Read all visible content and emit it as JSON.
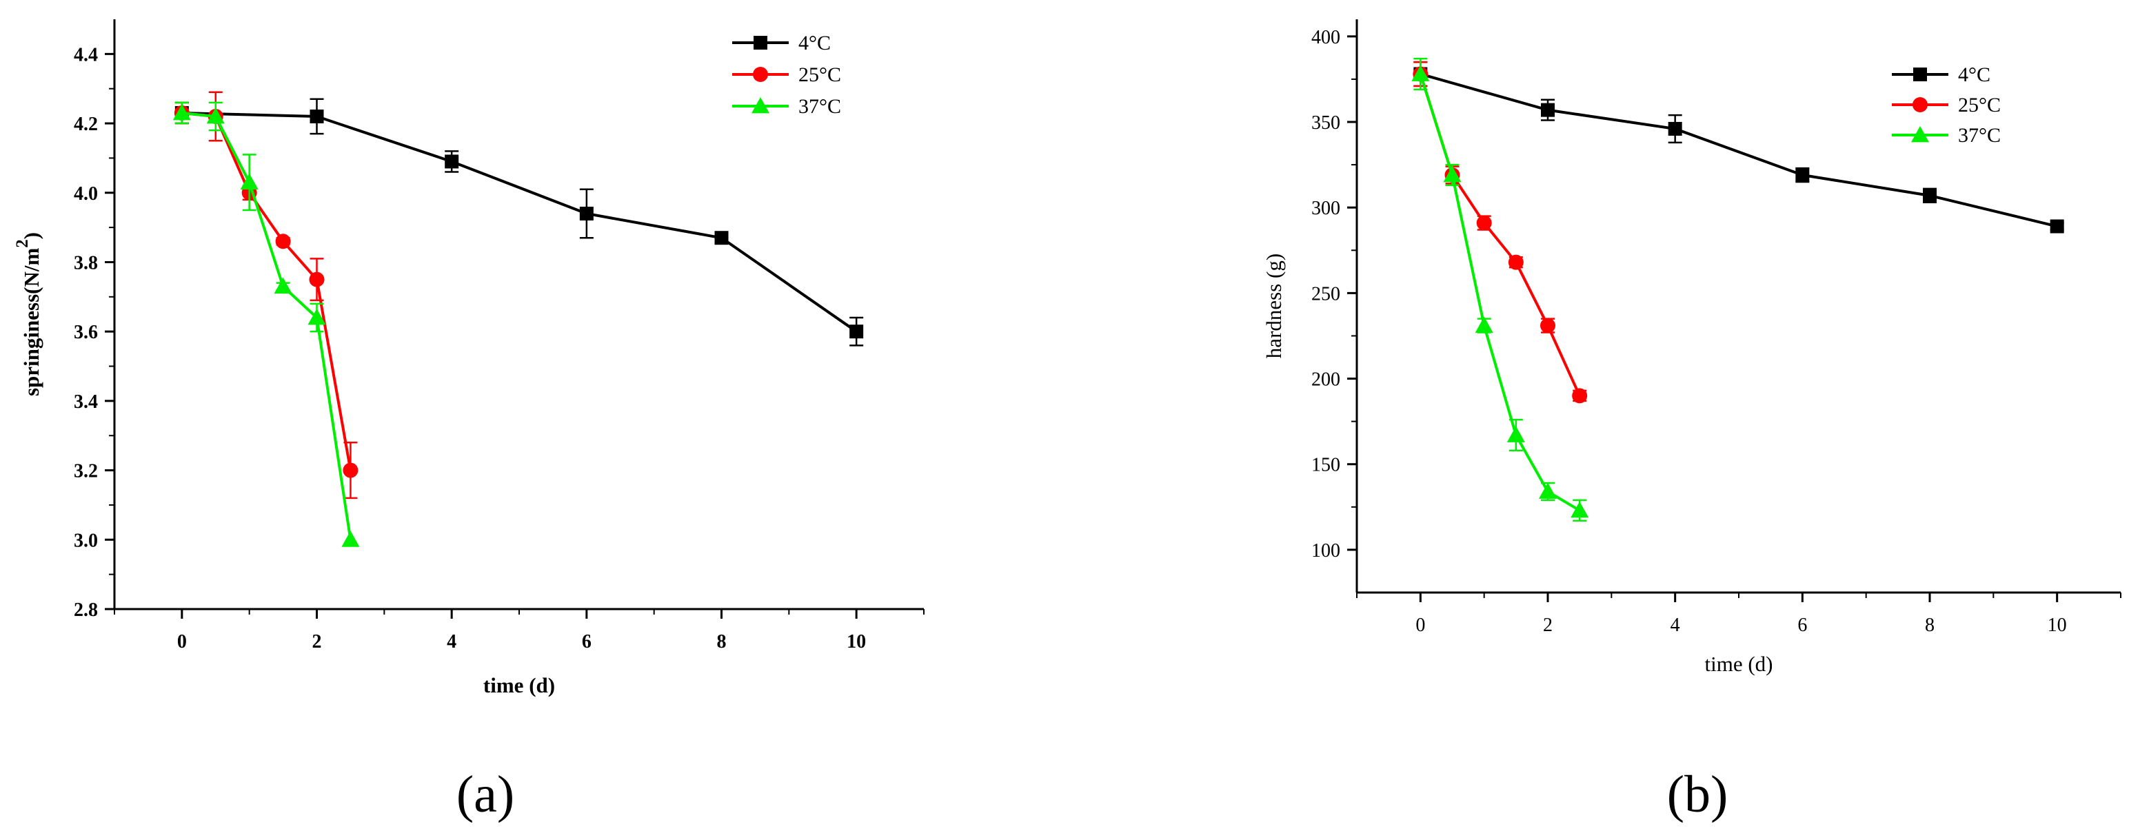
{
  "chart_data": [
    {
      "type": "line",
      "panel_label": "(a)",
      "title": "",
      "xlabel": "time (d)",
      "ylabel": "springiness(N/m",
      "ylabel_superscript": "2",
      "ylabel_close": ")",
      "xlim": [
        -1,
        11
      ],
      "ylim": [
        2.8,
        4.5
      ],
      "x_ticks": [
        "0",
        "2",
        "4",
        "6",
        "8",
        "10"
      ],
      "y_ticks": [
        "2.8",
        "3.0",
        "3.2",
        "3.4",
        "3.6",
        "3.8",
        "4.0",
        "4.2",
        "4.4"
      ],
      "legend_position": "top-right",
      "grid": false,
      "series": [
        {
          "name": "4°C",
          "color": "#000000",
          "marker": "square",
          "x": [
            0,
            2,
            4,
            6,
            8,
            10
          ],
          "y": [
            4.23,
            4.22,
            4.09,
            3.94,
            3.87,
            3.6
          ],
          "err": [
            0.03,
            0.05,
            0.03,
            0.07,
            0.01,
            0.04
          ]
        },
        {
          "name": "25°C",
          "color": "#ff0000",
          "marker": "circle",
          "x": [
            0,
            0.5,
            1,
            1.5,
            2,
            2.5
          ],
          "y": [
            4.23,
            4.22,
            4.0,
            3.86,
            3.75,
            3.2
          ],
          "err": [
            0.03,
            0.07,
            0.02,
            0.01,
            0.06,
            0.08
          ]
        },
        {
          "name": "37°C",
          "color": "#00ee00",
          "marker": "triangle",
          "x": [
            0,
            0.5,
            1,
            1.5,
            2,
            2.5
          ],
          "y": [
            4.23,
            4.22,
            4.03,
            3.73,
            3.64,
            3.0
          ],
          "err": [
            0.03,
            0.04,
            0.08,
            0.01,
            0.04,
            0.0
          ]
        }
      ]
    },
    {
      "type": "line",
      "panel_label": "(b)",
      "title": "",
      "xlabel": "time (d)",
      "ylabel": "hardness (g)",
      "ylabel_superscript": "",
      "ylabel_close": "",
      "xlim": [
        -1,
        11
      ],
      "ylim": [
        75,
        410
      ],
      "x_ticks": [
        "0",
        "2",
        "4",
        "6",
        "8",
        "10"
      ],
      "y_ticks": [
        "100",
        "150",
        "200",
        "250",
        "300",
        "350",
        "400"
      ],
      "legend_position": "top-right",
      "grid": false,
      "series": [
        {
          "name": "4°C",
          "color": "#000000",
          "marker": "square",
          "x": [
            0,
            2,
            4,
            6,
            8,
            10
          ],
          "y": [
            378,
            357,
            346,
            319,
            307,
            289
          ],
          "err": [
            7,
            6,
            8,
            4,
            4,
            2
          ]
        },
        {
          "name": "25°C",
          "color": "#ff0000",
          "marker": "circle",
          "x": [
            0,
            0.5,
            1,
            1.5,
            2,
            2.5
          ],
          "y": [
            378,
            319,
            291,
            268,
            231,
            190
          ],
          "err": [
            7,
            5,
            4,
            3,
            4,
            3
          ]
        },
        {
          "name": "37°C",
          "color": "#00ee00",
          "marker": "triangle",
          "x": [
            0,
            0.5,
            1,
            1.5,
            2,
            2.5
          ],
          "y": [
            378,
            319,
            231,
            167,
            134,
            123
          ],
          "err": [
            9,
            6,
            4,
            9,
            5,
            6
          ]
        }
      ]
    }
  ]
}
